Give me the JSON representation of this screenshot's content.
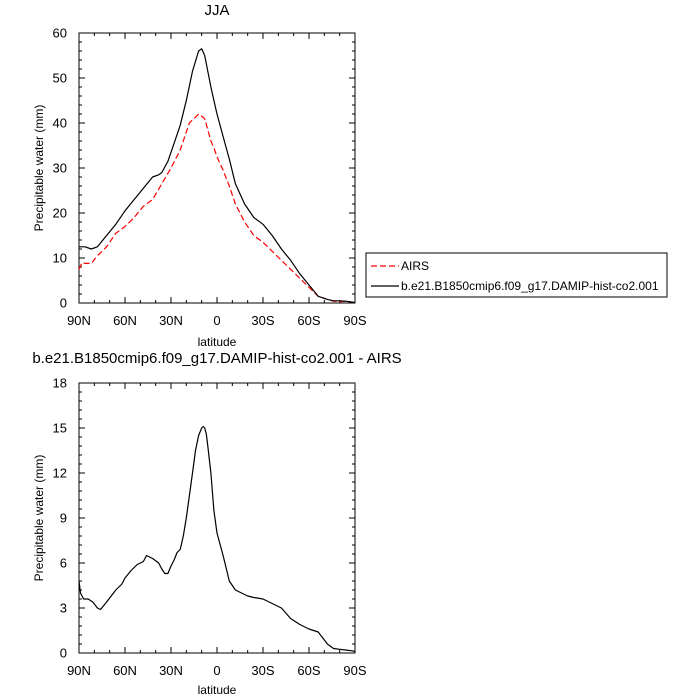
{
  "chart_data": [
    {
      "type": "line",
      "title": "JJA",
      "xlabel": "latitude",
      "ylabel": "Precipitable water (mm)",
      "xlim": [
        90,
        -90
      ],
      "ylim": [
        0,
        60
      ],
      "x_ticks": [
        90,
        60,
        30,
        0,
        -30,
        -60,
        -90
      ],
      "x_tick_labels": [
        "90N",
        "60N",
        "30N",
        "0",
        "30S",
        "60S",
        "90S"
      ],
      "y_ticks": [
        0,
        10,
        20,
        30,
        40,
        50,
        60
      ],
      "y_tick_labels": [
        "0",
        "10",
        "20",
        "30",
        "40",
        "50",
        "60"
      ],
      "legend": "right, outside",
      "series": [
        {
          "name": "AIRS",
          "color": "#ff0000",
          "dash": "dashed",
          "x": [
            90,
            88,
            86,
            82,
            78,
            72,
            66,
            60,
            54,
            48,
            42,
            36,
            30,
            24,
            18,
            12,
            8,
            6,
            4,
            2,
            0,
            -4,
            -8,
            -12,
            -18,
            -24,
            -30,
            -36,
            -42,
            -48,
            -54,
            -60,
            -66,
            -72,
            -76,
            -80,
            -84,
            -88,
            -90
          ],
          "values": [
            7.5,
            9.0,
            8.8,
            8.8,
            10.5,
            12.5,
            15.5,
            17.0,
            19.0,
            21.5,
            23.0,
            26.5,
            30.0,
            34.0,
            40.0,
            42.0,
            41.0,
            38.5,
            36.0,
            34.5,
            32.5,
            29.5,
            26.0,
            22.0,
            18.0,
            15.0,
            13.5,
            11.5,
            9.5,
            7.5,
            5.5,
            3.5,
            1.5,
            0.8,
            0.4,
            0.3,
            0.4,
            0.2,
            0.1
          ]
        },
        {
          "name": "b.e21.B1850cmip6.f09_g17.DAMIP-hist-co2.001",
          "color": "#000000",
          "dash": "solid",
          "x": [
            90,
            86,
            82,
            78,
            72,
            66,
            60,
            54,
            48,
            42,
            38,
            36,
            32,
            28,
            24,
            20,
            16,
            12,
            10,
            8,
            6,
            4,
            2,
            0,
            -4,
            -8,
            -12,
            -18,
            -24,
            -30,
            -36,
            -42,
            -48,
            -54,
            -60,
            -66,
            -72,
            -76,
            -80,
            -84,
            -88,
            -90
          ],
          "values": [
            12.5,
            12.5,
            12.0,
            12.5,
            15.0,
            17.5,
            20.5,
            23.0,
            25.5,
            28.0,
            28.5,
            29.0,
            31.5,
            35.5,
            39.5,
            45.0,
            51.5,
            56.0,
            56.5,
            55.0,
            51.5,
            48.0,
            45.0,
            42.0,
            37.0,
            32.0,
            26.5,
            22.0,
            19.0,
            17.5,
            15.0,
            12.0,
            9.5,
            6.5,
            4.0,
            1.5,
            0.8,
            0.5,
            0.5,
            0.4,
            0.2,
            0.1
          ]
        }
      ]
    },
    {
      "type": "line",
      "title": "b.e21.B1850cmip6.f09_g17.DAMIP-hist-co2.001 - AIRS",
      "xlabel": "latitude",
      "ylabel": "Precipitable water (mm)",
      "xlim": [
        90,
        -90
      ],
      "ylim": [
        0,
        18
      ],
      "x_ticks": [
        90,
        60,
        30,
        0,
        -30,
        -60,
        -90
      ],
      "x_tick_labels": [
        "90N",
        "60N",
        "30N",
        "0",
        "30S",
        "60S",
        "90S"
      ],
      "y_ticks": [
        0,
        3,
        6,
        9,
        12,
        15,
        18
      ],
      "y_tick_labels": [
        "0",
        "3",
        "6",
        "9",
        "12",
        "15",
        "18"
      ],
      "series": [
        {
          "color": "#000000",
          "dash": "solid",
          "x": [
            90,
            89,
            87,
            84,
            81,
            78,
            76,
            72,
            66,
            62,
            60,
            56,
            52,
            48,
            46,
            42,
            38,
            36,
            34,
            32,
            30,
            28,
            26,
            24,
            22,
            20,
            18,
            16,
            14,
            12,
            10,
            9,
            8,
            7,
            6,
            4,
            2,
            0,
            -4,
            -8,
            -12,
            -16,
            -20,
            -24,
            -30,
            -36,
            -42,
            -48,
            -54,
            -60,
            -66,
            -72,
            -76,
            -80,
            -84,
            -88,
            -90
          ],
          "values": [
            4.8,
            4.0,
            3.6,
            3.6,
            3.4,
            3.0,
            2.9,
            3.4,
            4.2,
            4.6,
            5.0,
            5.5,
            5.9,
            6.1,
            6.5,
            6.3,
            6.0,
            5.6,
            5.3,
            5.3,
            5.8,
            6.2,
            6.7,
            6.9,
            7.8,
            9.0,
            10.5,
            12.0,
            13.5,
            14.5,
            15.0,
            15.1,
            15.0,
            14.6,
            13.8,
            12.0,
            9.5,
            8.0,
            6.5,
            4.8,
            4.2,
            4.0,
            3.8,
            3.7,
            3.6,
            3.3,
            3.0,
            2.3,
            1.9,
            1.6,
            1.4,
            0.6,
            0.3,
            0.25,
            0.2,
            0.15,
            0.1
          ]
        }
      ]
    }
  ]
}
